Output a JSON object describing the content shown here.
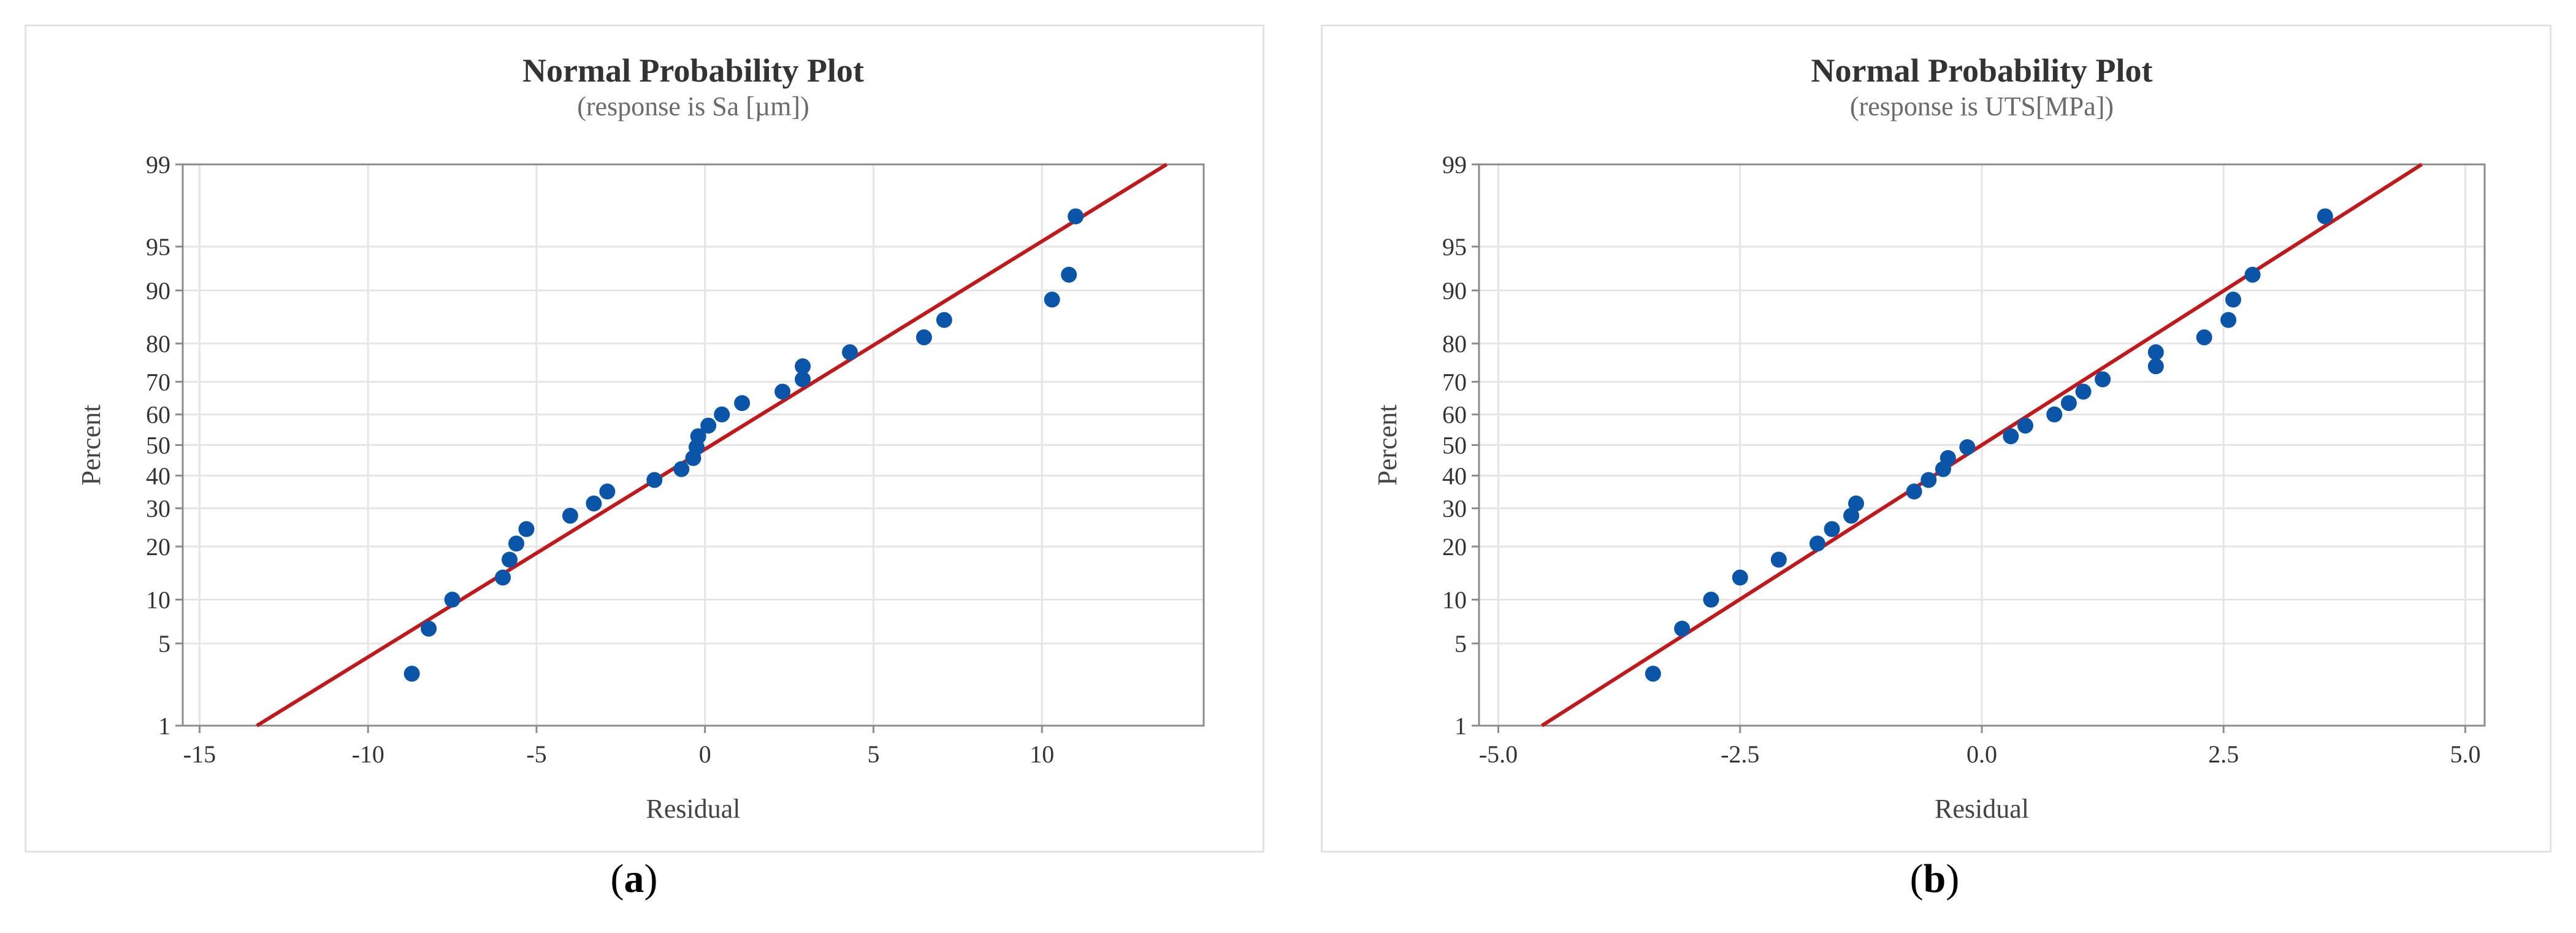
{
  "captions": {
    "a": "a",
    "b": "b"
  },
  "chart_data": [
    {
      "type": "scatter",
      "title": "Normal Probability Plot",
      "subtitle": "(response is Sa [µm])",
      "xlabel": "Residual",
      "ylabel": "Percent",
      "xlim": [
        -15.5,
        14.8
      ],
      "y_scale": "normal-probability",
      "ylim": [
        1,
        99
      ],
      "x_ticks": [
        -15,
        -10,
        -5,
        0,
        5,
        10
      ],
      "x_tick_labels": [
        "-15",
        "-10",
        "-5",
        "0",
        "5",
        "10"
      ],
      "y_ticks": [
        1,
        5,
        10,
        20,
        30,
        40,
        50,
        60,
        70,
        80,
        90,
        95,
        99
      ],
      "grid": true,
      "colors": {
        "points": "#0a55a8",
        "fit_line": "#c0191b"
      },
      "fit_line": {
        "x": [
          -13.3,
          13.7
        ],
        "y": [
          1,
          99
        ]
      },
      "points": [
        {
          "x": -8.7,
          "y": 2.9
        },
        {
          "x": -8.2,
          "y": 6.4
        },
        {
          "x": -7.5,
          "y": 10.0
        },
        {
          "x": -6.0,
          "y": 13.6
        },
        {
          "x": -5.8,
          "y": 17.1
        },
        {
          "x": -5.6,
          "y": 20.7
        },
        {
          "x": -5.3,
          "y": 24.3
        },
        {
          "x": -4.0,
          "y": 27.9
        },
        {
          "x": -3.3,
          "y": 31.4
        },
        {
          "x": -2.9,
          "y": 35.0
        },
        {
          "x": -1.5,
          "y": 38.6
        },
        {
          "x": -0.7,
          "y": 42.1
        },
        {
          "x": -0.35,
          "y": 45.7
        },
        {
          "x": -0.25,
          "y": 49.3
        },
        {
          "x": -0.2,
          "y": 52.9
        },
        {
          "x": 0.1,
          "y": 56.4
        },
        {
          "x": 0.5,
          "y": 60.0
        },
        {
          "x": 1.1,
          "y": 63.6
        },
        {
          "x": 2.3,
          "y": 67.1
        },
        {
          "x": 2.9,
          "y": 70.7
        },
        {
          "x": 2.9,
          "y": 74.3
        },
        {
          "x": 4.3,
          "y": 77.9
        },
        {
          "x": 6.5,
          "y": 81.4
        },
        {
          "x": 7.1,
          "y": 85.0
        },
        {
          "x": 10.3,
          "y": 88.6
        },
        {
          "x": 10.8,
          "y": 92.1
        },
        {
          "x": 11.0,
          "y": 97.1
        }
      ]
    },
    {
      "type": "scatter",
      "title": "Normal Probability Plot",
      "subtitle": "(response is UTS[MPa])",
      "xlabel": "Residual",
      "ylabel": "Percent",
      "xlim": [
        -5.2,
        5.2
      ],
      "y_scale": "normal-probability",
      "ylim": [
        1,
        99
      ],
      "x_ticks": [
        -5,
        -2.5,
        0,
        2.5,
        5
      ],
      "x_tick_labels": [
        "-5.0",
        "-2.5",
        "0.0",
        "2.5",
        "5.0"
      ],
      "y_ticks": [
        1,
        5,
        10,
        20,
        30,
        40,
        50,
        60,
        70,
        80,
        90,
        95,
        99
      ],
      "grid": true,
      "colors": {
        "points": "#0a55a8",
        "fit_line": "#c0191b"
      },
      "fit_line": {
        "x": [
          -4.55,
          4.55
        ],
        "y": [
          1,
          99
        ]
      },
      "points": [
        {
          "x": -3.4,
          "y": 2.9
        },
        {
          "x": -3.1,
          "y": 6.4
        },
        {
          "x": -2.8,
          "y": 10.0
        },
        {
          "x": -2.5,
          "y": 13.6
        },
        {
          "x": -2.1,
          "y": 17.1
        },
        {
          "x": -1.7,
          "y": 20.7
        },
        {
          "x": -1.55,
          "y": 24.3
        },
        {
          "x": -1.35,
          "y": 27.9
        },
        {
          "x": -1.3,
          "y": 31.4
        },
        {
          "x": -0.7,
          "y": 35.0
        },
        {
          "x": -0.55,
          "y": 38.6
        },
        {
          "x": -0.4,
          "y": 42.1
        },
        {
          "x": -0.35,
          "y": 45.7
        },
        {
          "x": -0.15,
          "y": 49.3
        },
        {
          "x": 0.3,
          "y": 52.9
        },
        {
          "x": 0.45,
          "y": 56.4
        },
        {
          "x": 0.75,
          "y": 60.0
        },
        {
          "x": 0.9,
          "y": 63.6
        },
        {
          "x": 1.05,
          "y": 67.1
        },
        {
          "x": 1.25,
          "y": 70.7
        },
        {
          "x": 1.8,
          "y": 74.3
        },
        {
          "x": 1.8,
          "y": 77.9
        },
        {
          "x": 2.3,
          "y": 81.4
        },
        {
          "x": 2.55,
          "y": 85.0
        },
        {
          "x": 2.6,
          "y": 88.6
        },
        {
          "x": 2.8,
          "y": 92.1
        },
        {
          "x": 3.55,
          "y": 97.1
        }
      ]
    }
  ]
}
